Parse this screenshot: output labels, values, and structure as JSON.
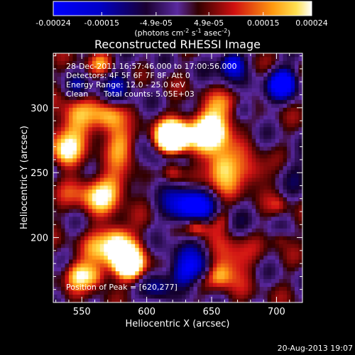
{
  "chart_data": {
    "type": "heatmap",
    "title": "Reconstructed RHESSI Image",
    "xlabel": "Heliocentric X (arcsec)",
    "ylabel": "Heliocentric Y (arcsec)",
    "xlim": [
      528,
      720
    ],
    "ylim": [
      150,
      342
    ],
    "x_ticks": [
      550,
      600,
      650,
      700
    ],
    "x_tick_labels": [
      "550",
      "600",
      "650",
      "700"
    ],
    "y_ticks": [
      200,
      250,
      300
    ],
    "y_tick_labels": [
      "200",
      "250",
      "300"
    ],
    "colorbar": {
      "range": [
        -0.00024,
        0.00024
      ],
      "ticks": [
        -0.00024,
        -0.00015,
        -4.9e-05,
        4.9e-05,
        0.00015,
        0.00024
      ],
      "tick_labels": [
        "-0.00024",
        "-0.00015",
        "-4.9e-05",
        "4.9e-05",
        "0.00015",
        "0.00024"
      ],
      "unit_label": "(photons cm",
      "unit_sup1": "-2",
      "unit_mid": " s",
      "unit_sup2": "-1",
      "unit_mid2": " asec",
      "unit_sup3": "-2",
      "unit_end": ")",
      "colormap": "blue-black-purple-red-orange-yellow-white"
    },
    "annotations": {
      "time_range": "28-Dec-2011 16:57:46.000 to 17:00:56.000",
      "detectors": "Detectors: 4F 5F 6F 7F 8F, Att 0",
      "energy_range": "Energy Range: 12.0 - 25.0 keV",
      "method": "Clean",
      "total_counts": "Total counts: 5.05E+03",
      "peak_position": "Position of Peak = [620,277]"
    },
    "peak": {
      "x": 620,
      "y": 277
    }
  },
  "footer_timestamp": "20-Aug-2013 19:07"
}
